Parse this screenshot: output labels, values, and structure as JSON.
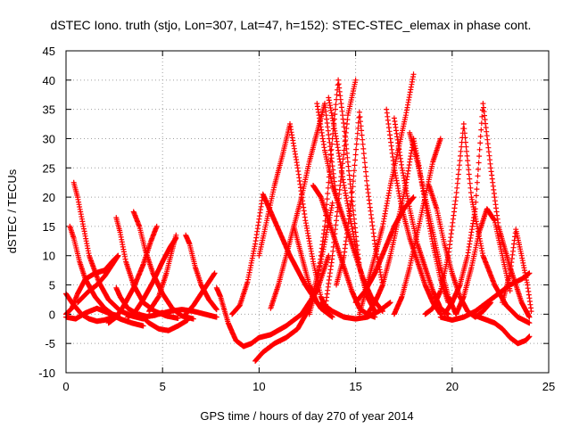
{
  "chart_data": {
    "type": "scatter",
    "title": "dSTEC Iono. truth (stjo, Lon=307, Lat=47, h=152): STEC-STEC_elemax in phase cont.",
    "xlabel": "GPS time / hours of day 270 of year 2014",
    "ylabel": "dSTEC  / TECUs",
    "xlim": [
      0,
      25
    ],
    "ylim": [
      -10,
      45
    ],
    "xticks": [
      0,
      5,
      10,
      15,
      20,
      25
    ],
    "yticks": [
      -10,
      -5,
      0,
      5,
      10,
      15,
      20,
      25,
      30,
      35,
      40,
      45
    ],
    "grid": true,
    "marker": "plus",
    "color": "#ff0000",
    "series": [
      {
        "x": [
          0.0,
          0.3,
          0.8,
          1.2,
          1.6,
          2.0,
          2.6
        ],
        "y": [
          3.5,
          2.0,
          0.0,
          -0.8,
          -1.2,
          -1.0,
          -0.3
        ]
      },
      {
        "x": [
          0.2,
          0.4,
          0.7,
          1.0,
          1.5,
          2.0,
          2.4,
          2.7
        ],
        "y": [
          15.0,
          13.0,
          9.0,
          6.0,
          3.0,
          1.0,
          0.0,
          -0.3
        ]
      },
      {
        "x": [
          0.4,
          0.6,
          0.9,
          1.2,
          1.7,
          2.2,
          2.8,
          3.4,
          4.0
        ],
        "y": [
          22.5,
          20.0,
          15.0,
          10.0,
          5.5,
          2.5,
          0.6,
          -0.3,
          -0.8
        ]
      },
      {
        "x": [
          0.0,
          0.3,
          0.6,
          1.0,
          1.5,
          2.0,
          2.4,
          2.7
        ],
        "y": [
          0.0,
          1.0,
          3.5,
          6.0,
          7.0,
          7.5,
          9.0,
          10.0
        ]
      },
      {
        "x": [
          0.6,
          0.9,
          1.2,
          1.6,
          2.0,
          2.4,
          2.7
        ],
        "y": [
          2.0,
          3.0,
          4.0,
          5.0,
          6.5,
          8.5,
          10.0
        ]
      },
      {
        "x": [
          0.0,
          0.5,
          1.0,
          1.6,
          2.2,
          2.8,
          3.4,
          4.0
        ],
        "y": [
          -0.5,
          -0.8,
          0.2,
          1.0,
          0.2,
          -0.8,
          -1.5,
          -2.0
        ]
      },
      {
        "x": [
          2.6,
          2.8,
          3.1,
          3.5,
          4.0,
          4.6,
          5.2,
          5.8
        ],
        "y": [
          16.5,
          14.0,
          9.0,
          5.0,
          2.0,
          0.5,
          -0.3,
          -0.7
        ]
      },
      {
        "x": [
          2.6,
          2.8,
          3.2,
          3.7,
          4.2,
          4.6,
          5.0
        ],
        "y": [
          4.5,
          3.0,
          1.0,
          0.0,
          -0.4,
          -0.2,
          0.3
        ]
      },
      {
        "x": [
          3.5,
          3.8,
          4.1,
          4.5,
          5.0,
          5.5,
          6.0,
          6.6
        ],
        "y": [
          17.5,
          15.0,
          11.0,
          7.0,
          3.5,
          1.0,
          -0.3,
          -0.8
        ]
      },
      {
        "x": [
          2.2,
          2.6,
          3.0,
          3.5,
          4.0,
          4.4,
          4.7
        ],
        "y": [
          -1.5,
          -0.5,
          1.5,
          4.5,
          8.5,
          12.5,
          15.0
        ]
      },
      {
        "x": [
          3.2,
          3.6,
          4.0,
          4.5,
          5.0,
          5.4,
          5.7
        ],
        "y": [
          -0.5,
          0.5,
          2.5,
          5.5,
          9.0,
          11.5,
          13.0
        ]
      },
      {
        "x": [
          4.3,
          4.8,
          5.2,
          5.5,
          5.7
        ],
        "y": [
          0.5,
          3.0,
          7.0,
          11.0,
          13.5
        ]
      },
      {
        "x": [
          3.8,
          4.3,
          4.8,
          5.3,
          5.8,
          6.3
        ],
        "y": [
          0.0,
          -1.5,
          -2.5,
          -2.8,
          -2.0,
          -1.0
        ]
      },
      {
        "x": [
          6.2,
          6.4,
          6.7,
          7.0,
          7.4,
          7.8
        ],
        "y": [
          13.5,
          12.0,
          8.0,
          5.0,
          2.5,
          0.8
        ]
      },
      {
        "x": [
          6.2,
          6.6,
          7.0,
          7.4,
          7.7
        ],
        "y": [
          0.0,
          1.5,
          3.5,
          5.5,
          7.0
        ]
      },
      {
        "x": [
          4.8,
          5.4,
          6.0,
          6.6,
          7.2,
          7.8
        ],
        "y": [
          0.0,
          0.5,
          0.8,
          0.5,
          0.0,
          -0.5
        ]
      },
      {
        "x": [
          7.8,
          8.0,
          8.4,
          8.8,
          9.2,
          9.6,
          10.0,
          10.6,
          11.4,
          12.2,
          13.0,
          13.6
        ],
        "y": [
          4.5,
          3.0,
          -1.5,
          -4.5,
          -5.5,
          -5.0,
          -4.0,
          -3.5,
          -2.0,
          0.0,
          4.0,
          10.0
        ]
      },
      {
        "x": [
          8.6,
          9.0,
          9.4,
          9.8,
          10.2,
          10.8,
          11.6,
          12.4,
          13.2,
          13.8
        ],
        "y": [
          0.0,
          1.5,
          5.5,
          12.0,
          20.5,
          16.0,
          10.0,
          5.0,
          1.0,
          -0.5
        ]
      },
      {
        "x": [
          9.8,
          10.2,
          10.8,
          11.4,
          12.0,
          12.6,
          13.2,
          13.8
        ],
        "y": [
          -8.0,
          -6.5,
          -5.0,
          -4.0,
          -2.5,
          1.0,
          9.0,
          19.0
        ]
      },
      {
        "x": [
          10.0,
          10.4,
          10.8,
          11.2,
          11.6,
          12.0,
          12.4,
          12.8,
          13.2,
          13.6
        ],
        "y": [
          10.0,
          16.0,
          22.0,
          27.0,
          32.5,
          25.0,
          16.0,
          9.0,
          3.0,
          0.0
        ]
      },
      {
        "x": [
          10.6,
          11.0,
          11.4,
          11.8,
          12.2,
          12.6,
          13.0,
          13.4,
          14.0
        ],
        "y": [
          1.0,
          5.0,
          10.0,
          15.0,
          20.0,
          26.0,
          31.0,
          36.0,
          20.0
        ]
      },
      {
        "x": [
          11.8,
          12.2,
          12.6,
          13.0,
          13.4,
          13.8,
          14.2,
          14.6,
          15.0
        ],
        "y": [
          15.0,
          10.0,
          5.0,
          2.0,
          0.5,
          10.0,
          22.0,
          34.0,
          40.0
        ]
      },
      {
        "x": [
          12.6,
          13.0,
          13.4,
          13.8,
          14.1,
          14.4,
          14.8,
          15.2
        ],
        "y": [
          0.0,
          5.0,
          15.0,
          30.0,
          40.0,
          32.0,
          20.0,
          8.0
        ]
      },
      {
        "x": [
          13.0,
          13.4,
          13.8,
          14.2,
          14.6,
          15.0,
          15.4,
          15.8,
          16.4
        ],
        "y": [
          36.0,
          28.0,
          22.0,
          18.0,
          14.0,
          10.0,
          6.0,
          3.0,
          0.5
        ]
      },
      {
        "x": [
          12.8,
          13.2,
          13.6,
          14.0,
          14.4,
          14.8,
          15.2,
          15.6,
          16.0
        ],
        "y": [
          22.0,
          20.0,
          16.0,
          12.0,
          8.0,
          4.0,
          1.0,
          0.0,
          -0.5
        ]
      },
      {
        "x": [
          13.6,
          14.0,
          14.4,
          14.8,
          15.2,
          15.6,
          16.0
        ],
        "y": [
          37.0,
          30.0,
          22.0,
          15.0,
          8.0,
          3.0,
          0.5
        ]
      },
      {
        "x": [
          14.0,
          14.4,
          14.8,
          15.2,
          15.6,
          16.0,
          16.4
        ],
        "y": [
          5.0,
          10.0,
          20.0,
          34.5,
          22.0,
          12.0,
          5.0
        ]
      },
      {
        "x": [
          13.2,
          13.8,
          14.4,
          15.0,
          15.6,
          16.2,
          16.8
        ],
        "y": [
          2.0,
          0.5,
          -0.5,
          -0.8,
          -0.5,
          0.5,
          2.0
        ]
      },
      {
        "x": [
          15.2,
          15.6,
          16.0,
          16.4,
          16.8,
          17.2,
          17.6,
          18.0
        ],
        "y": [
          0.0,
          5.0,
          10.0,
          15.0,
          22.0,
          28.0,
          34.0,
          41.0
        ]
      },
      {
        "x": [
          15.6,
          16.0,
          16.4,
          16.8,
          17.2,
          17.6,
          18.0
        ],
        "y": [
          0.0,
          2.0,
          5.0,
          10.0,
          16.0,
          22.0,
          30.0
        ]
      },
      {
        "x": [
          15.0,
          15.5,
          16.0,
          16.5,
          17.0,
          17.5,
          18.0
        ],
        "y": [
          2.0,
          4.0,
          7.0,
          11.0,
          15.0,
          18.0,
          20.0
        ]
      },
      {
        "x": [
          16.6,
          17.0,
          17.4,
          17.8,
          18.2,
          18.6,
          19.0,
          19.4
        ],
        "y": [
          35.0,
          25.0,
          18.0,
          13.0,
          9.0,
          5.0,
          2.0,
          0.0
        ]
      },
      {
        "x": [
          17.0,
          17.4,
          17.8,
          18.2,
          18.6,
          19.0,
          19.4,
          19.8
        ],
        "y": [
          33.5,
          25.0,
          18.0,
          12.0,
          8.0,
          4.0,
          1.0,
          0.0
        ]
      },
      {
        "x": [
          17.8,
          18.2,
          18.6,
          19.0,
          19.4,
          19.8,
          20.2
        ],
        "y": [
          31.0,
          26.0,
          20.0,
          14.0,
          8.0,
          3.0,
          0.0
        ]
      },
      {
        "x": [
          18.0,
          18.3,
          18.6,
          19.0,
          19.4,
          19.8
        ],
        "y": [
          30.0,
          25.0,
          19.0,
          12.0,
          6.0,
          2.0
        ]
      },
      {
        "x": [
          17.0,
          17.4,
          17.8,
          18.2,
          18.6,
          19.0,
          19.4
        ],
        "y": [
          0.0,
          3.0,
          8.0,
          14.0,
          20.0,
          26.0,
          30.0
        ]
      },
      {
        "x": [
          18.6,
          19.0,
          19.4,
          19.8,
          20.2,
          20.6,
          21.0,
          21.6,
          22.2,
          22.8,
          23.4,
          24.0
        ],
        "y": [
          0.0,
          1.0,
          4.0,
          10.0,
          20.0,
          32.5,
          20.0,
          10.0,
          5.0,
          1.5,
          -0.5,
          -1.5
        ]
      },
      {
        "x": [
          19.6,
          20.0,
          20.4,
          20.8,
          21.2,
          21.6,
          22.0,
          22.4,
          23.0,
          23.6,
          24.0
        ],
        "y": [
          0.0,
          2.0,
          5.0,
          10.0,
          18.0,
          36.0,
          25.0,
          15.0,
          8.0,
          2.0,
          -0.5
        ]
      },
      {
        "x": [
          20.2,
          20.6,
          21.0,
          21.4,
          21.8,
          22.2,
          22.6,
          23.0
        ],
        "y": [
          0.0,
          3.0,
          8.0,
          14.0,
          18.0,
          16.0,
          10.0,
          4.0
        ]
      },
      {
        "x": [
          19.4,
          20.0,
          20.6,
          21.2,
          21.8,
          22.4,
          23.0,
          23.6,
          24.0
        ],
        "y": [
          -0.5,
          -1.0,
          -0.5,
          0.5,
          2.0,
          3.5,
          5.0,
          6.0,
          7.0
        ]
      },
      {
        "x": [
          21.0,
          21.4,
          21.8,
          22.2,
          22.6,
          23.0,
          23.4,
          23.8,
          24.0
        ],
        "y": [
          0.0,
          -0.5,
          -1.0,
          -1.5,
          -2.5,
          -4.0,
          -5.0,
          -4.5,
          -3.8
        ]
      },
      {
        "x": [
          22.6,
          23.0,
          23.3,
          23.6,
          23.9,
          24.1
        ],
        "y": [
          2.0,
          7.0,
          14.5,
          10.0,
          5.0,
          0.5
        ]
      },
      {
        "x": [
          18.8,
          19.2,
          19.6,
          20.0,
          20.4,
          20.8,
          21.2,
          21.6,
          22.0
        ],
        "y": [
          22.0,
          18.0,
          12.0,
          7.0,
          3.0,
          0.5,
          -0.5,
          0.5,
          2.0
        ]
      }
    ]
  }
}
